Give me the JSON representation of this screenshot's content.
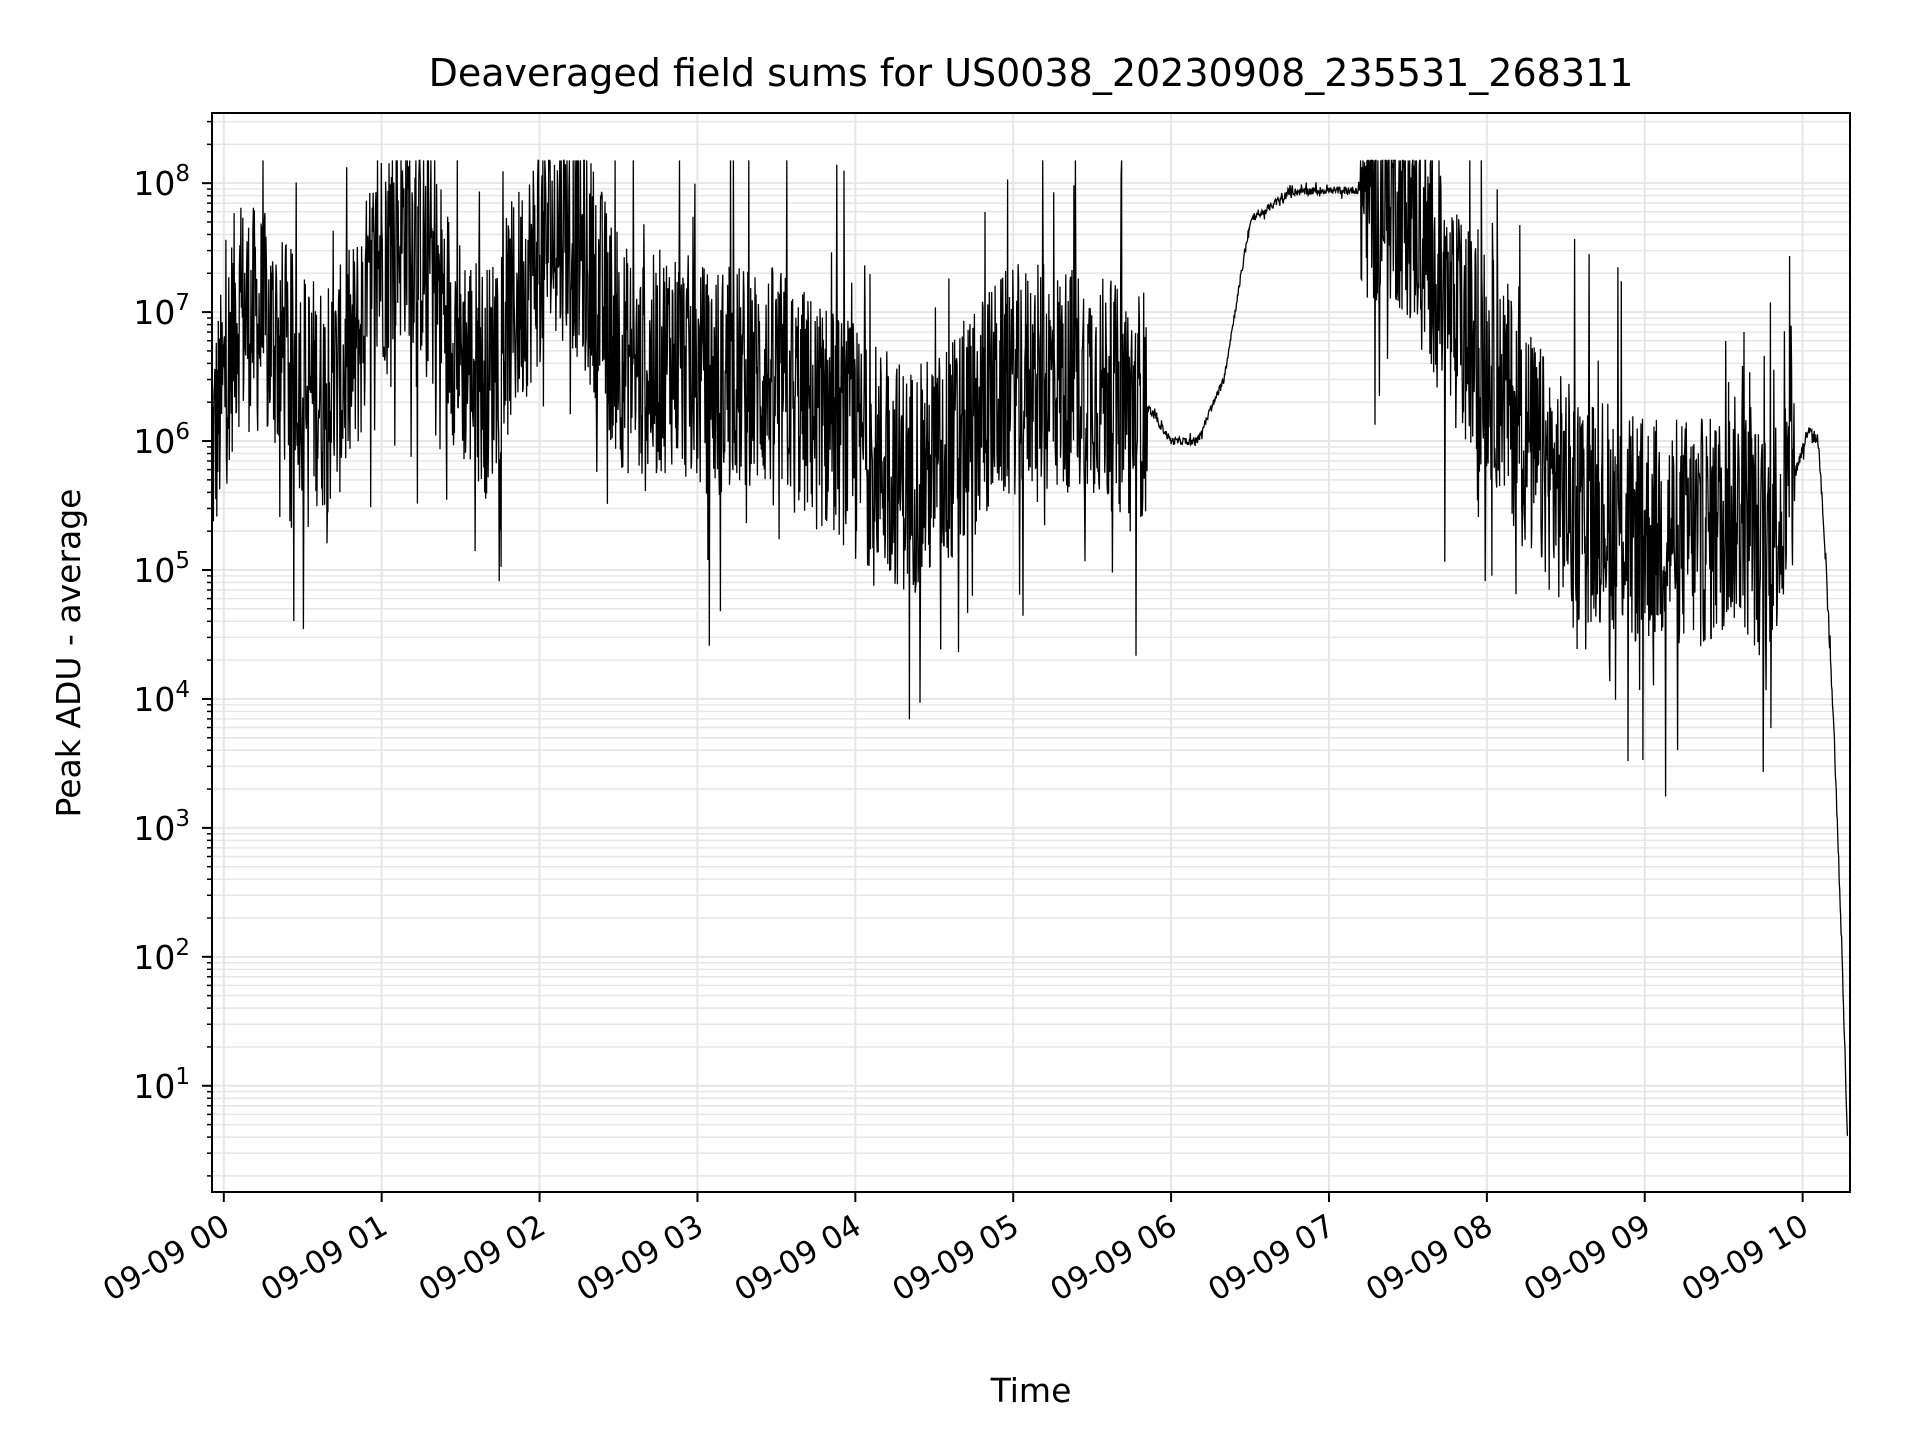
{
  "chart_data": {
    "type": "line",
    "title": "Deaveraged field sums for US0038_20230908_235531_268311",
    "xlabel": "Time",
    "ylabel": "Peak ADU - average",
    "yscale": "log",
    "grid": true,
    "grid_minor": true,
    "x_type": "datetime",
    "xlim": [
      "2023-09-08 23:55:31",
      "2023-09-09 10:18:00"
    ],
    "ylim": [
      1.5,
      350000000
    ],
    "x_ticks": [
      "09-09 00",
      "09-09 01",
      "09-09 02",
      "09-09 03",
      "09-09 04",
      "09-09 05",
      "09-09 06",
      "09-09 07",
      "09-09 08",
      "09-09 09",
      "09-09 10"
    ],
    "x_tick_times": [
      "2023-09-09 00:00",
      "2023-09-09 01:00",
      "2023-09-09 02:00",
      "2023-09-09 03:00",
      "2023-09-09 04:00",
      "2023-09-09 05:00",
      "2023-09-09 06:00",
      "2023-09-09 07:00",
      "2023-09-09 08:00",
      "2023-09-09 09:00",
      "2023-09-09 10:00"
    ],
    "y_ticks": [
      10,
      100,
      1000,
      10000,
      100000,
      1000000,
      10000000,
      100000000
    ],
    "y_tick_labels": [
      {
        "base": "10",
        "exp": "1"
      },
      {
        "base": "10",
        "exp": "2"
      },
      {
        "base": "10",
        "exp": "3"
      },
      {
        "base": "10",
        "exp": "4"
      },
      {
        "base": "10",
        "exp": "5"
      },
      {
        "base": "10",
        "exp": "6"
      },
      {
        "base": "10",
        "exp": "7"
      },
      {
        "base": "10",
        "exp": "8"
      }
    ],
    "line_color": "#000000",
    "grid_color": "#e6e6e6",
    "series": [
      {
        "x": [
          "2023-09-08 23:55:31",
          "2023-09-09 00:05",
          "2023-09-09 00:15",
          "2023-09-09 00:22",
          "2023-09-09 00:30",
          "2023-09-09 00:40",
          "2023-09-09 00:50",
          "2023-09-09 01:00",
          "2023-09-09 01:10",
          "2023-09-09 01:20",
          "2023-09-09 01:30",
          "2023-09-09 01:40",
          "2023-09-09 01:50",
          "2023-09-09 02:00",
          "2023-09-09 02:10",
          "2023-09-09 02:20",
          "2023-09-09 02:30",
          "2023-09-09 02:40",
          "2023-09-09 02:50",
          "2023-09-09 03:00",
          "2023-09-09 03:10",
          "2023-09-09 03:20",
          "2023-09-09 03:30",
          "2023-09-09 03:40",
          "2023-09-09 03:50",
          "2023-09-09 04:00",
          "2023-09-09 04:10",
          "2023-09-09 04:20",
          "2023-09-09 04:30",
          "2023-09-09 04:40",
          "2023-09-09 04:50",
          "2023-09-09 05:00",
          "2023-09-09 05:10",
          "2023-09-09 05:20",
          "2023-09-09 05:30",
          "2023-09-09 05:40",
          "2023-09-09 05:50",
          "2023-09-09 06:00",
          "2023-09-09 06:10",
          "2023-09-09 06:20",
          "2023-09-09 06:30",
          "2023-09-09 06:45",
          "2023-09-09 07:00",
          "2023-09-09 07:15",
          "2023-09-09 07:25",
          "2023-09-09 07:35",
          "2023-09-09 07:45",
          "2023-09-09 07:55",
          "2023-09-09 08:05",
          "2023-09-09 08:15",
          "2023-09-09 08:25",
          "2023-09-09 08:35",
          "2023-09-09 08:45",
          "2023-09-09 08:55",
          "2023-09-09 09:05",
          "2023-09-09 09:15",
          "2023-09-09 09:25",
          "2023-09-09 09:35",
          "2023-09-09 09:45",
          "2023-09-09 09:55",
          "2023-09-09 10:02",
          "2023-09-09 10:06",
          "2023-09-09 10:09",
          "2023-09-09 10:12",
          "2023-09-09 10:15",
          "2023-09-09 10:17"
        ],
        "values": [
          800000,
          10000000,
          8000000,
          5000000,
          3000000,
          2000000,
          5000000,
          30000000,
          50000000,
          20000000,
          5000000,
          3000000,
          10000000,
          30000000,
          50000000,
          20000000,
          5000000,
          3000000,
          5000000,
          3000000,
          3000000,
          3000000,
          3000000,
          2000000,
          1500000,
          1000000,
          700000,
          500000,
          600000,
          1000000,
          2000000,
          3000000,
          3000000,
          3000000,
          3000000,
          2000000,
          2000000,
          1000000,
          1000000,
          3000000,
          50000000,
          85000000,
          88000000,
          88000000,
          90000000,
          50000000,
          10000000,
          5000000,
          3000000,
          1000000,
          500000,
          300000,
          300000,
          200000,
          200000,
          200000,
          200000,
          300000,
          150000,
          400000,
          1200000,
          1000000,
          100000,
          5000,
          100,
          4
        ]
      }
    ]
  }
}
